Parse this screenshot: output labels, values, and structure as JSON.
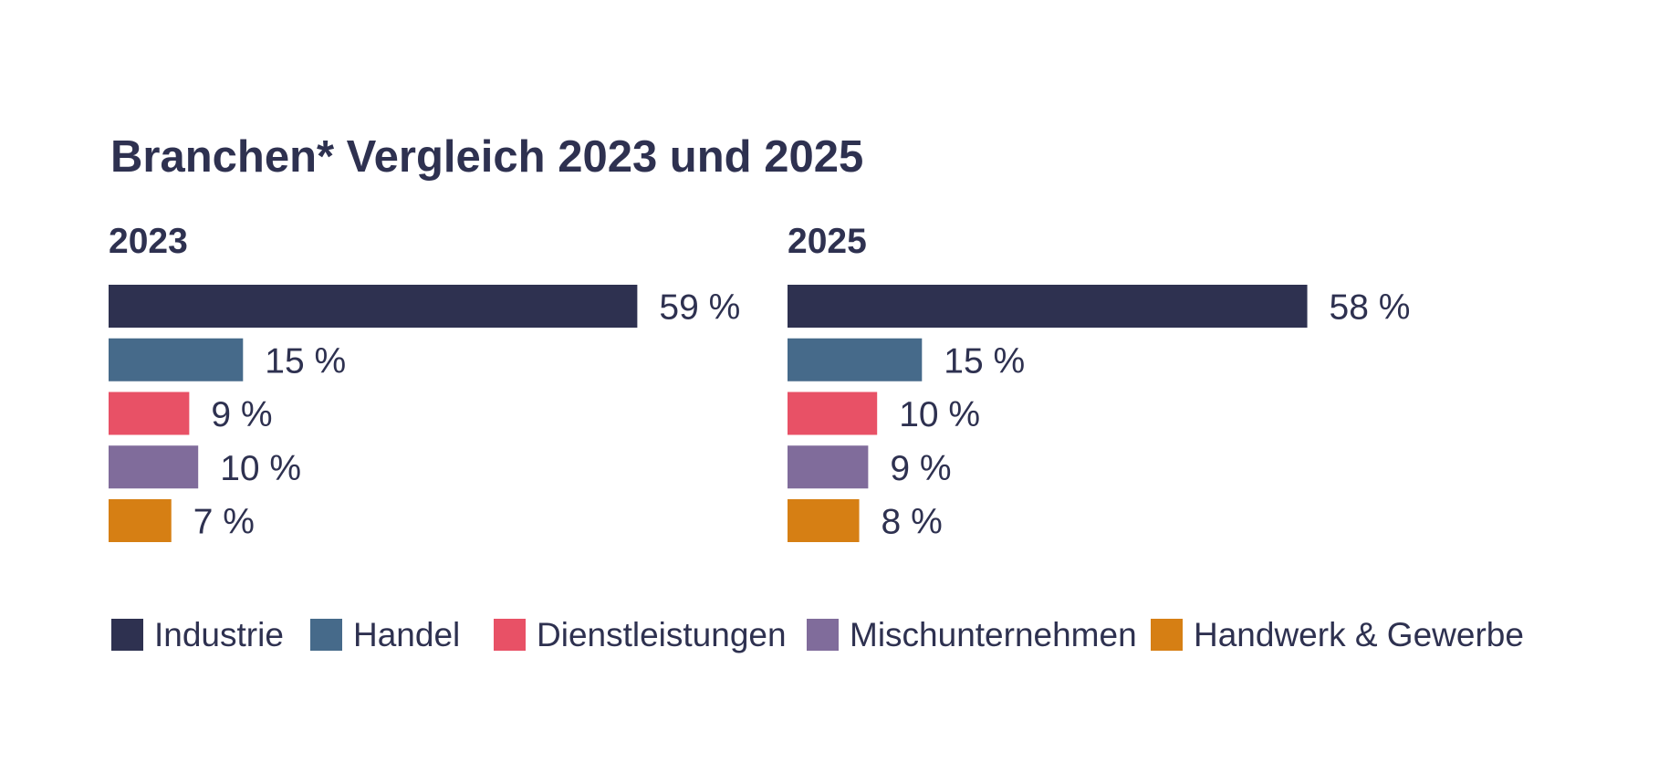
{
  "chart_data": {
    "type": "bar",
    "orientation": "horizontal",
    "title": "Branchen* Vergleich 2023 und 2025",
    "unit": "%",
    "categories": [
      "Industrie",
      "Handel",
      "Dienstleistungen",
      "Mischunternehmen",
      "Handwerk & Gewerbe"
    ],
    "colors": [
      "#2e3150",
      "#466a8a",
      "#e85166",
      "#806c9b",
      "#d67f14"
    ],
    "panels": [
      {
        "year": "2023",
        "values": [
          59,
          15,
          9,
          10,
          7
        ],
        "labels": [
          "59 %",
          "15 %",
          "9 %",
          "10 %",
          "7 %"
        ]
      },
      {
        "year": "2025",
        "values": [
          58,
          15,
          10,
          9,
          8
        ],
        "labels": [
          "58 %",
          "15 %",
          "10 %",
          "9 %",
          "8 %"
        ]
      }
    ],
    "xlim": [
      0,
      59
    ],
    "legend_position": "bottom"
  }
}
